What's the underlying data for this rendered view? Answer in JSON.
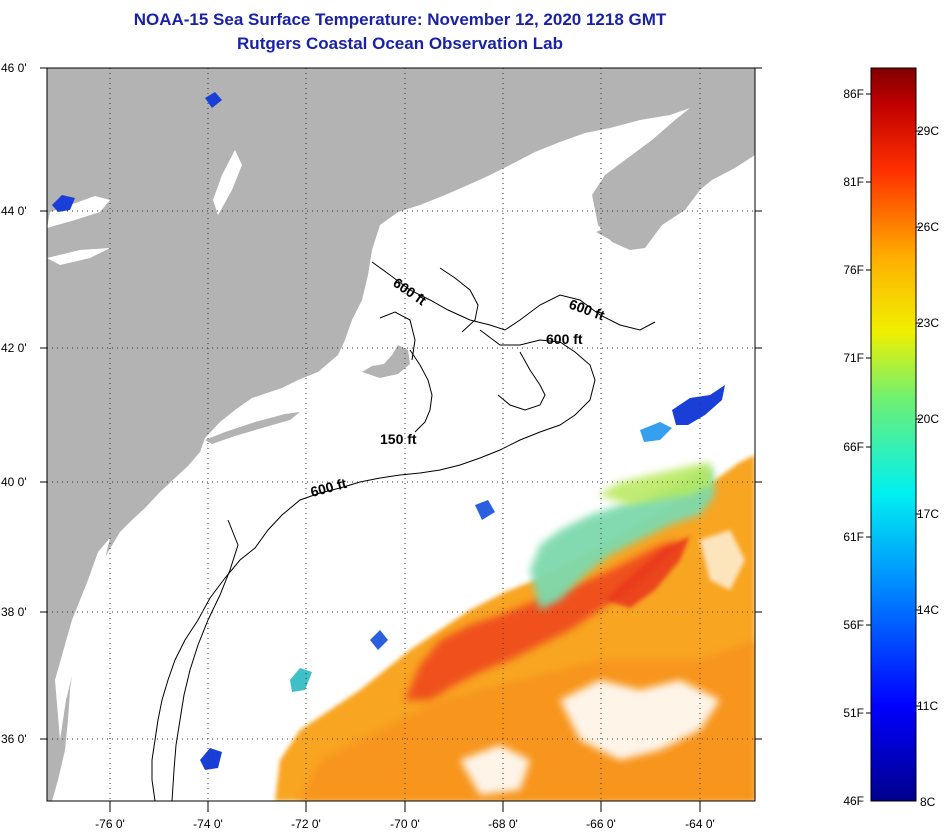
{
  "title": {
    "line1": "NOAA-15 Sea Surface Temperature:  November 12, 2020 1218 GMT",
    "line2": "Rutgers Coastal Ocean Observation Lab"
  },
  "map": {
    "lat_labels": [
      "46 0'",
      "44 0'",
      "42 0'",
      "40 0'",
      "38 0'",
      "36 0'"
    ],
    "lon_labels": [
      "-76 0'",
      "-74 0'",
      "-72 0'",
      "-70 0'",
      "-68 0'",
      "-66 0'",
      "-64 0'"
    ],
    "contours": [
      "600 ft",
      "600 ft",
      "600 ft",
      "150 ft",
      "600 ft"
    ],
    "land_color": "#b3b3b3",
    "water_color": "#ffffff"
  },
  "colorbar": {
    "fahrenheit": [
      "86F",
      "81F",
      "76F",
      "71F",
      "66F",
      "61F",
      "56F",
      "51F",
      "46F"
    ],
    "celsius": [
      "29C",
      "26C",
      "23C",
      "20C",
      "17C",
      "14C",
      "11C",
      "8C"
    ]
  }
}
